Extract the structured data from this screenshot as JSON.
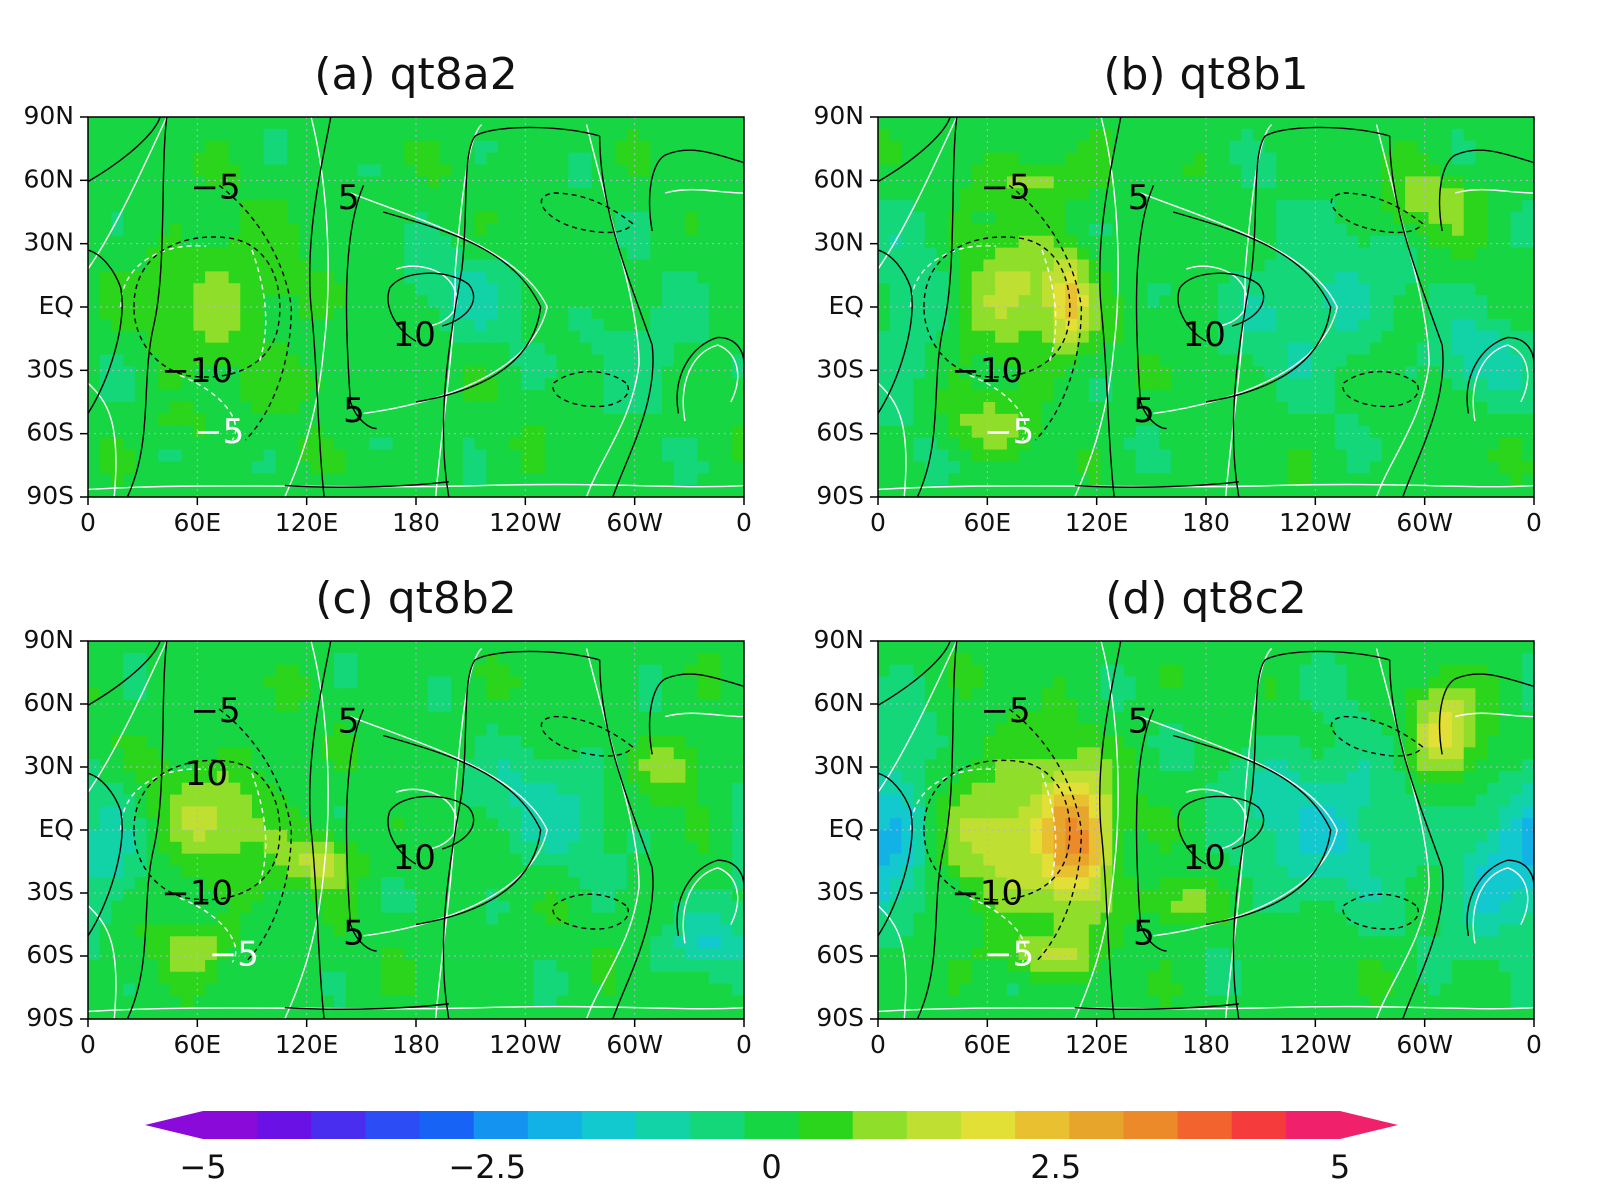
{
  "colors": {
    "base_field": "#2ed81d",
    "contour_black": "#000000",
    "contour_white": "#ffffff",
    "grid": "#b9b2d6"
  },
  "colorbar": {
    "tick_labels": [
      "−5",
      "−2.5",
      "0",
      "2.5",
      "5"
    ],
    "tick_values": [
      -5,
      -2.5,
      0,
      2.5,
      5
    ],
    "min": -5,
    "max": 5,
    "extend": "both",
    "colors": [
      "#8a0ad9",
      "#6a12e6",
      "#4a2ef0",
      "#2c4cf5",
      "#1763f5",
      "#1493f0",
      "#13b2e6",
      "#12c9cf",
      "#12d3a8",
      "#14d77a",
      "#16d743",
      "#2ad51b",
      "#8fdf2a",
      "#bfe032",
      "#e2df36",
      "#e8c030",
      "#e8a52c",
      "#ec8a2a",
      "#f2632d",
      "#f53b3b",
      "#f1206a"
    ]
  },
  "chart_data": [
    {
      "type": "heatmap",
      "title": "(a) qt8a2",
      "x_tick_labels": [
        "0",
        "60E",
        "120E",
        "180",
        "120W",
        "60W",
        "0"
      ],
      "y_tick_labels": [
        "90N",
        "60N",
        "30N",
        "EQ",
        "30S",
        "60S",
        "90S"
      ],
      "xlim": [
        0,
        360
      ],
      "ylim": [
        -90,
        90
      ],
      "grid": true,
      "contour_labels": [
        {
          "text": "−5",
          "lon": 70,
          "lat": 56
        },
        {
          "text": "5",
          "lon": 143,
          "lat": 51
        },
        {
          "text": "10",
          "lon": 179,
          "lat": -14
        },
        {
          "text": "−10",
          "lon": 60,
          "lat": -31
        },
        {
          "text": "5",
          "lon": 146,
          "lat": -50
        },
        {
          "text": "−5",
          "lon": 72,
          "lat": -60
        }
      ],
      "anomalies": [
        {
          "lon": 75,
          "lat": 5,
          "rx": 38,
          "ry": 30,
          "value": 0.9
        },
        {
          "lon": 210,
          "lat": 5,
          "rx": 35,
          "ry": 22,
          "value": -0.7
        },
        {
          "lon": 305,
          "lat": -20,
          "rx": 30,
          "ry": 25,
          "value": -0.6
        },
        {
          "lon": 120,
          "lat": -35,
          "rx": 20,
          "ry": 12,
          "value": 0.6
        },
        {
          "lon": 50,
          "lat": -55,
          "rx": 20,
          "ry": 10,
          "value": 0.5
        }
      ]
    },
    {
      "type": "heatmap",
      "title": "(b) qt8b1",
      "x_tick_labels": [
        "0",
        "60E",
        "120E",
        "180",
        "120W",
        "60W",
        "0"
      ],
      "y_tick_labels": [
        "90N",
        "60N",
        "30N",
        "EQ",
        "30S",
        "60S",
        "90S"
      ],
      "xlim": [
        0,
        360
      ],
      "ylim": [
        -90,
        90
      ],
      "grid": true,
      "contour_labels": [
        {
          "text": "−5",
          "lon": 70,
          "lat": 56
        },
        {
          "text": "5",
          "lon": 143,
          "lat": 51
        },
        {
          "text": "10",
          "lon": 179,
          "lat": -14
        },
        {
          "text": "−10",
          "lon": 60,
          "lat": -31
        },
        {
          "text": "5",
          "lon": 146,
          "lat": -50
        },
        {
          "text": "−5",
          "lon": 72,
          "lat": -60
        }
      ],
      "anomalies": [
        {
          "lon": 75,
          "lat": 5,
          "rx": 38,
          "ry": 30,
          "value": 1.3
        },
        {
          "lon": 105,
          "lat": 0,
          "rx": 10,
          "ry": 20,
          "value": 1.6
        },
        {
          "lon": 240,
          "lat": 0,
          "rx": 45,
          "ry": 35,
          "value": -0.9
        },
        {
          "lon": 20,
          "lat": 0,
          "rx": 22,
          "ry": 45,
          "value": -0.8
        },
        {
          "lon": 330,
          "lat": -25,
          "rx": 22,
          "ry": 20,
          "value": -1.0
        },
        {
          "lon": 305,
          "lat": 50,
          "rx": 25,
          "ry": 15,
          "value": 1.0
        },
        {
          "lon": 90,
          "lat": 60,
          "rx": 28,
          "ry": 12,
          "value": 1.0
        },
        {
          "lon": 60,
          "lat": -55,
          "rx": 25,
          "ry": 12,
          "value": 0.9
        }
      ]
    },
    {
      "type": "heatmap",
      "title": "(c) qt8b2",
      "x_tick_labels": [
        "0",
        "60E",
        "120E",
        "180",
        "120W",
        "60W",
        "0"
      ],
      "y_tick_labels": [
        "90N",
        "60N",
        "30N",
        "EQ",
        "30S",
        "60S",
        "90S"
      ],
      "xlim": [
        0,
        360
      ],
      "ylim": [
        -90,
        90
      ],
      "grid": true,
      "contour_labels": [
        {
          "text": "−5",
          "lon": 70,
          "lat": 56
        },
        {
          "text": "5",
          "lon": 143,
          "lat": 51
        },
        {
          "text": "10",
          "lon": 65,
          "lat": 26
        },
        {
          "text": "10",
          "lon": 179,
          "lat": -14
        },
        {
          "text": "−10",
          "lon": 60,
          "lat": -31
        },
        {
          "text": "5",
          "lon": 146,
          "lat": -50
        },
        {
          "text": "−5",
          "lon": 80,
          "lat": -60
        }
      ],
      "anomalies": [
        {
          "lon": 70,
          "lat": 5,
          "rx": 35,
          "ry": 28,
          "value": 1.1
        },
        {
          "lon": 130,
          "lat": -15,
          "rx": 20,
          "ry": 12,
          "value": 1.4
        },
        {
          "lon": 250,
          "lat": 10,
          "rx": 40,
          "ry": 30,
          "value": -0.8
        },
        {
          "lon": 10,
          "lat": -10,
          "rx": 18,
          "ry": 30,
          "value": -1.0
        },
        {
          "lon": 340,
          "lat": -55,
          "rx": 22,
          "ry": 15,
          "value": -1.1
        },
        {
          "lon": 320,
          "lat": 30,
          "rx": 22,
          "ry": 15,
          "value": 0.9
        },
        {
          "lon": 60,
          "lat": -55,
          "rx": 22,
          "ry": 12,
          "value": 1.0
        }
      ]
    },
    {
      "type": "heatmap",
      "title": "(d) qt8c2",
      "x_tick_labels": [
        "0",
        "60E",
        "120E",
        "180",
        "120W",
        "60W",
        "0"
      ],
      "y_tick_labels": [
        "90N",
        "60N",
        "30N",
        "EQ",
        "30S",
        "60S",
        "90S"
      ],
      "xlim": [
        0,
        360
      ],
      "ylim": [
        -90,
        90
      ],
      "grid": true,
      "contour_labels": [
        {
          "text": "−5",
          "lon": 70,
          "lat": 56
        },
        {
          "text": "5",
          "lon": 143,
          "lat": 51
        },
        {
          "text": "10",
          "lon": 179,
          "lat": -14
        },
        {
          "text": "−10",
          "lon": 60,
          "lat": -31
        },
        {
          "text": "5",
          "lon": 146,
          "lat": -50
        },
        {
          "text": "−5",
          "lon": 72,
          "lat": -60
        }
      ],
      "anomalies": [
        {
          "lon": 75,
          "lat": 0,
          "rx": 40,
          "ry": 35,
          "value": 1.5
        },
        {
          "lon": 110,
          "lat": -5,
          "rx": 18,
          "ry": 32,
          "value": 2.7
        },
        {
          "lon": 245,
          "lat": 5,
          "rx": 50,
          "ry": 38,
          "value": -1.2
        },
        {
          "lon": 10,
          "lat": 5,
          "rx": 20,
          "ry": 40,
          "value": -1.5
        },
        {
          "lon": 340,
          "lat": -25,
          "rx": 25,
          "ry": 30,
          "value": -1.4
        },
        {
          "lon": 310,
          "lat": 45,
          "rx": 20,
          "ry": 22,
          "value": 2.0
        },
        {
          "lon": 165,
          "lat": -35,
          "rx": 20,
          "ry": 12,
          "value": 1.1
        },
        {
          "lon": 90,
          "lat": -60,
          "rx": 30,
          "ry": 10,
          "value": 1.1
        }
      ]
    }
  ]
}
